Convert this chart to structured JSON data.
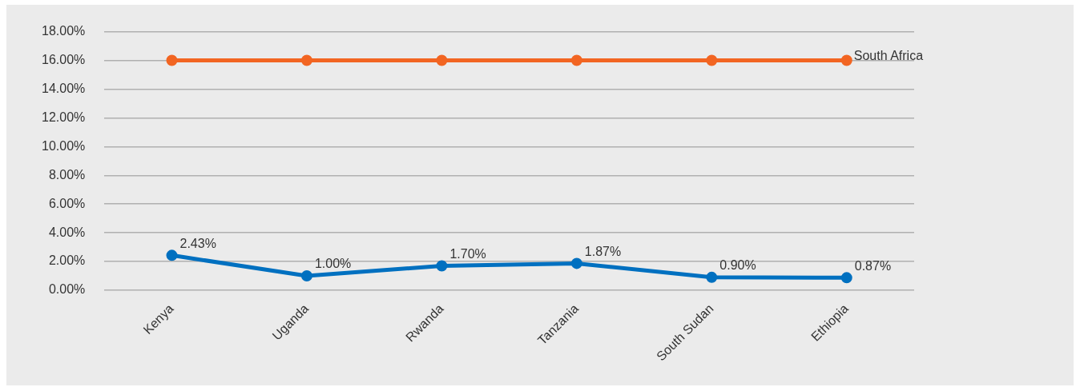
{
  "chart_data": {
    "type": "line",
    "categories": [
      "Kenya",
      "Uganda",
      "Rwanda",
      "Tanzania",
      "South Sudan",
      "Ethiopia"
    ],
    "series": [
      {
        "name": "South Africa",
        "color": "#f26522",
        "values": [
          16,
          16,
          16,
          16,
          16,
          16
        ]
      },
      {
        "color": "#0070c0",
        "values": [
          2.43,
          1.0,
          1.7,
          1.87,
          0.9,
          0.87
        ],
        "value_labels": [
          "2.43%",
          "1.00%",
          "1.70%",
          "1.87%",
          "0.90%",
          "0.87%"
        ]
      }
    ],
    "ylim": [
      0,
      18
    ],
    "yticks": [
      {
        "value": 0,
        "label": "0.00%"
      },
      {
        "value": 2,
        "label": "2.00%"
      },
      {
        "value": 4,
        "label": "4.00%"
      },
      {
        "value": 6,
        "label": "6.00%"
      },
      {
        "value": 8,
        "label": "8.00%"
      },
      {
        "value": 10,
        "label": "10.00%"
      },
      {
        "value": 12,
        "label": "12.00%"
      },
      {
        "value": 14,
        "label": "14.00%"
      },
      {
        "value": 16,
        "label": "16.00%"
      },
      {
        "value": 18,
        "label": "18.00%"
      }
    ],
    "grid": "y",
    "legend": false,
    "marker": "circle",
    "line_style": "solid"
  }
}
